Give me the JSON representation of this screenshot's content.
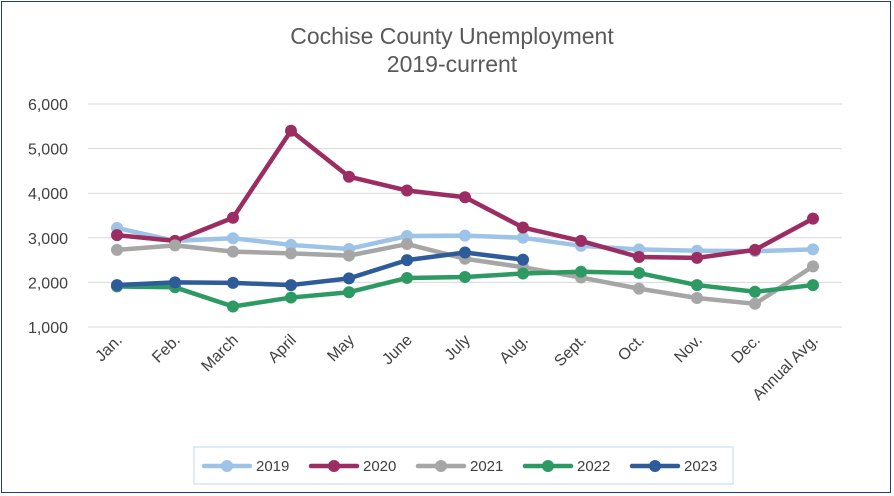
{
  "chart_data": {
    "type": "line",
    "title": "Cochise County Unemployment",
    "subtitle": "2019-current",
    "xlabel": "",
    "ylabel": "",
    "ylim": [
      1000,
      6000
    ],
    "yticks": [
      "1,000",
      "2,000",
      "3,000",
      "4,000",
      "5,000",
      "6,000"
    ],
    "ytick_values": [
      1000,
      2000,
      3000,
      4000,
      5000,
      6000
    ],
    "grid": true,
    "legend_position": "bottom",
    "categories": [
      "Jan.",
      "Feb.",
      "March",
      "April",
      "May",
      "June",
      "July",
      "Aug.",
      "Sept.",
      "Oct.",
      "Nov.",
      "Dec.",
      "Annual Avg."
    ],
    "series": [
      {
        "name": "2019",
        "color": "#9dc3e6",
        "values": [
          3220,
          2930,
          2990,
          2840,
          2750,
          3040,
          3050,
          3000,
          2820,
          2740,
          2710,
          2700,
          2740
        ]
      },
      {
        "name": "2020",
        "color": "#9b2d63",
        "values": [
          3060,
          2930,
          3450,
          5400,
          4370,
          4060,
          3910,
          3230,
          2930,
          2570,
          2550,
          2730,
          3430
        ]
      },
      {
        "name": "2021",
        "color": "#a6a6a6",
        "values": [
          2730,
          2830,
          2690,
          2650,
          2600,
          2860,
          2530,
          2340,
          2110,
          1860,
          1650,
          1520,
          2360
        ]
      },
      {
        "name": "2022",
        "color": "#2e9a63",
        "values": [
          1910,
          1890,
          1460,
          1660,
          1780,
          2100,
          2120,
          2200,
          2240,
          2210,
          1940,
          1790,
          1940
        ]
      },
      {
        "name": "2023",
        "color": "#2e5b9a",
        "values": [
          1940,
          2000,
          1990,
          1940,
          2090,
          2500,
          2670,
          2510,
          null,
          null,
          null,
          null,
          null
        ]
      }
    ]
  }
}
